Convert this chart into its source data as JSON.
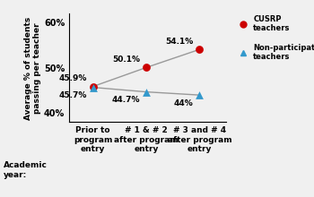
{
  "x_labels": [
    "Prior to\nprogram\nentry",
    "# 1 & # 2\nafter program\nentry",
    "# 3 and # 4\nafter program\nentry"
  ],
  "cusrp_values": [
    45.9,
    50.1,
    54.1
  ],
  "nonpart_values": [
    45.7,
    44.7,
    44.0
  ],
  "cusrp_labels": [
    "45.9%",
    "50.1%",
    "54.1%"
  ],
  "nonpart_labels": [
    "45.7%",
    "44.7%",
    "44%"
  ],
  "ylim": [
    38,
    62
  ],
  "yticks": [
    40,
    50,
    60
  ],
  "ytick_labels": [
    "40%",
    "50%",
    "60%"
  ],
  "ylabel": "Average % of students\npassing per teacher",
  "xlabel": "Academic\nyear:",
  "line_color": "#999999",
  "cusrp_marker_color": "#cc0000",
  "nonpart_marker_color": "#3399cc",
  "legend_cusrp": "CUSRP\nteachers",
  "legend_nonpart": "Non-participating\nteachers",
  "background_color": "#f0f0f0",
  "label_fontsize": 6.5,
  "axis_fontsize": 6.5,
  "tick_fontsize": 7
}
